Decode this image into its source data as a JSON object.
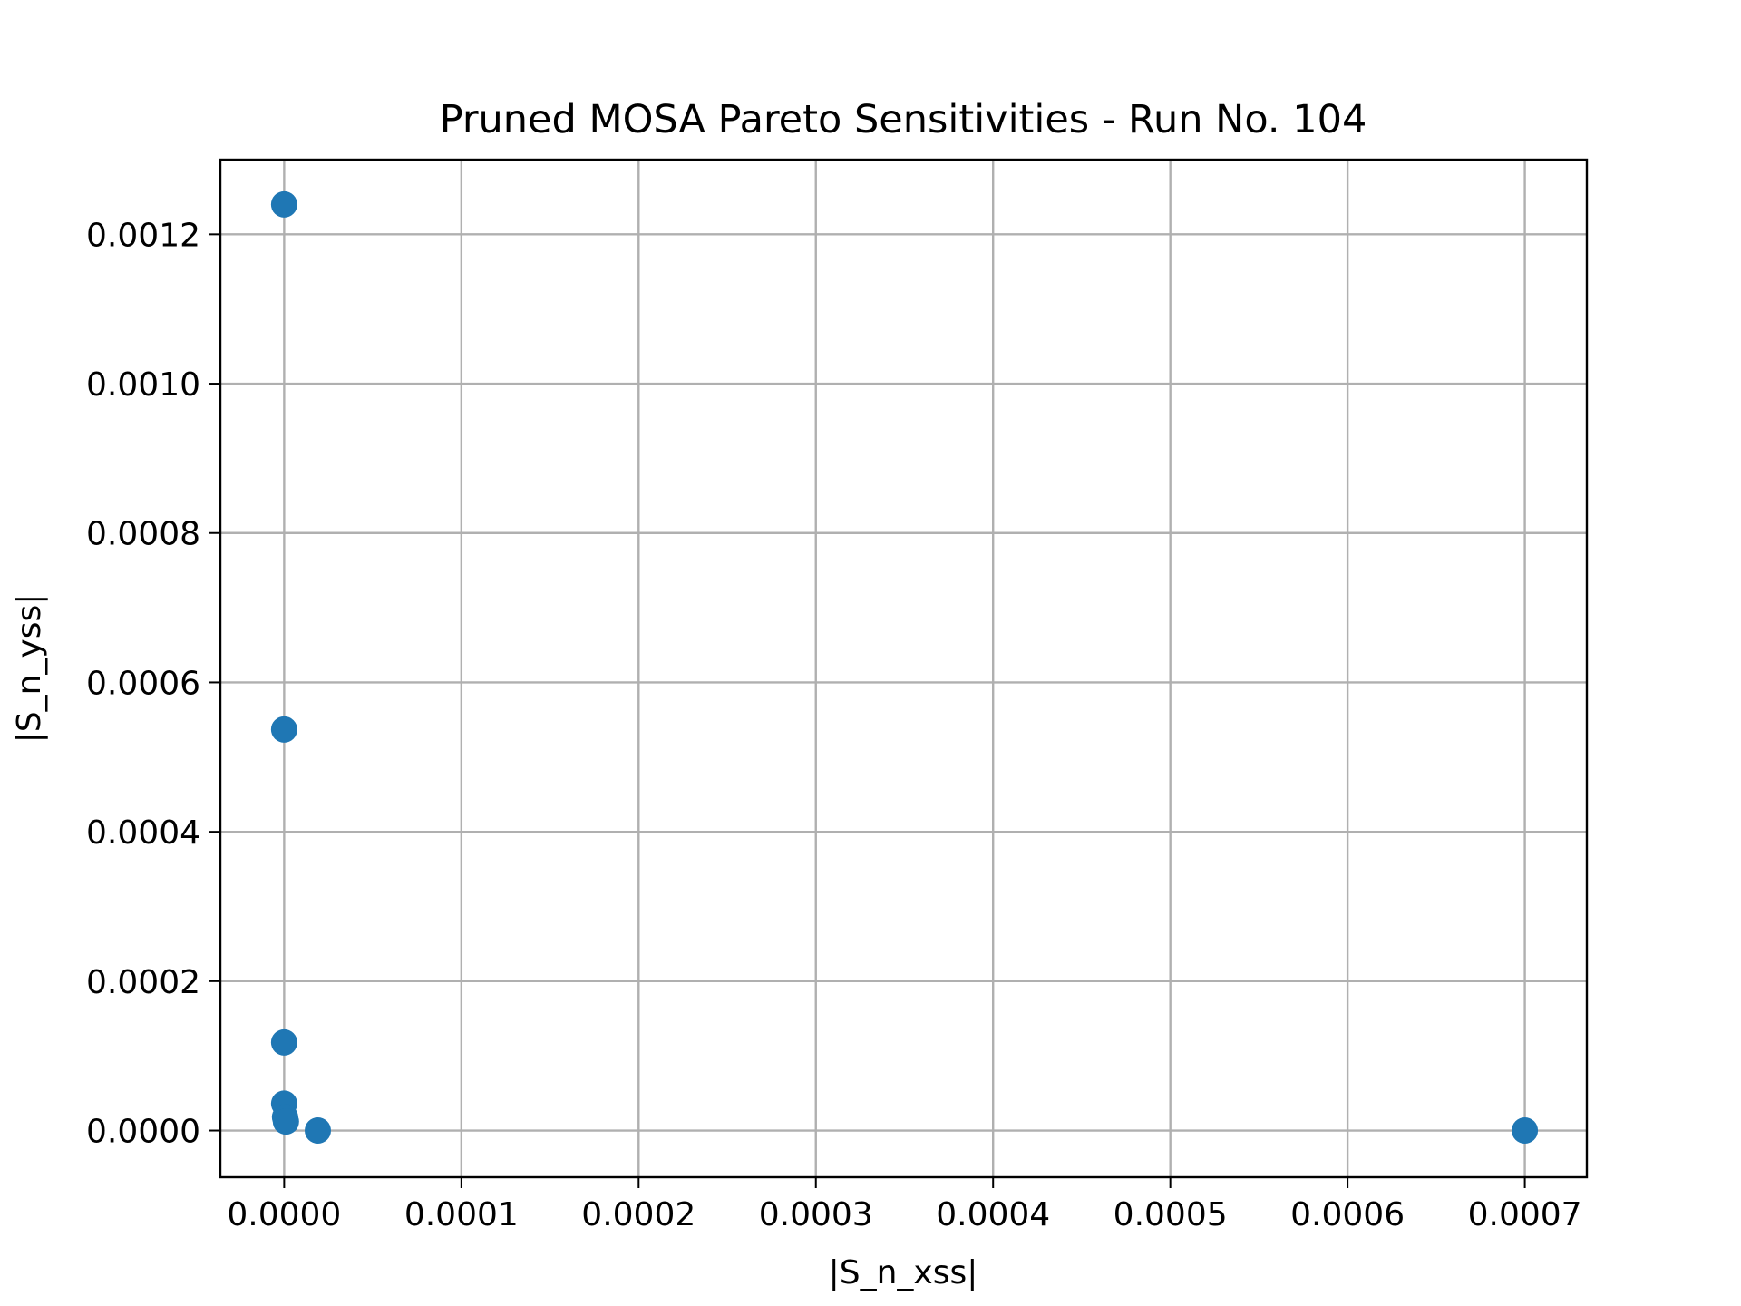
{
  "chart_data": {
    "type": "scatter",
    "title": "Pruned MOSA Pareto Sensitivities - Run No. 104",
    "xlabel": "|S_n_xss|",
    "ylabel": "|S_n_yss|",
    "xlim": [
      -3.6e-05,
      0.000735
    ],
    "ylim": [
      -6.25e-05,
      0.0013
    ],
    "xticks": [
      0.0,
      0.0001,
      0.0002,
      0.0003,
      0.0004,
      0.0005,
      0.0006,
      0.0007
    ],
    "xtick_labels": [
      "0.0000",
      "0.0001",
      "0.0002",
      "0.0003",
      "0.0004",
      "0.0005",
      "0.0006",
      "0.0007"
    ],
    "yticks": [
      0.0,
      0.0002,
      0.0004,
      0.0006,
      0.0008,
      0.001,
      0.0012
    ],
    "ytick_labels": [
      "0.0000",
      "0.0002",
      "0.0004",
      "0.0006",
      "0.0008",
      "0.0010",
      "0.0012"
    ],
    "grid": true,
    "color": "#1f77b4",
    "points": [
      {
        "x": 0.0,
        "y": 0.00124
      },
      {
        "x": 0.0,
        "y": 0.000537
      },
      {
        "x": 0.0,
        "y": 0.000118
      },
      {
        "x": 0.0,
        "y": 3.6e-05
      },
      {
        "x": 5e-07,
        "y": 1.8e-05
      },
      {
        "x": 1e-06,
        "y": 1.2e-05
      },
      {
        "x": 1.9e-05,
        "y": 0.0
      },
      {
        "x": 0.0007,
        "y": 0.0
      }
    ]
  }
}
